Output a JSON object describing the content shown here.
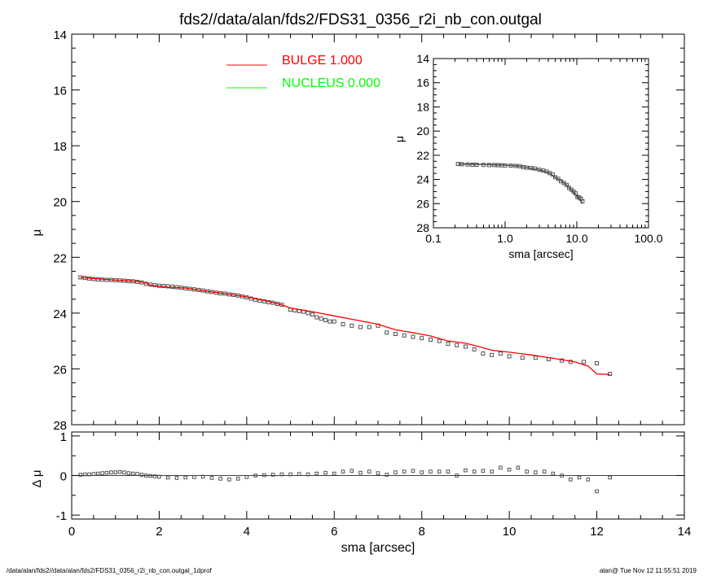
{
  "title": "fds2//data/alan/fds2/FDS31_0356_r2i_nb_con.outgal",
  "footer": {
    "left": "/data/alan/fds2//data/alan/fds2/FDS31_0356_r2i_nb_con.outgal_1dprof",
    "right": "alan@  Tue Nov 12 11:55:51 2019"
  },
  "chart_data": [
    {
      "id": "main",
      "type": "scatter",
      "xlabel": "sma [arcsec]",
      "ylabel": "μ",
      "xlim": [
        0,
        14
      ],
      "ylim": [
        28,
        14
      ],
      "x_ticks": [
        "0",
        "2",
        "4",
        "6",
        "8",
        "10",
        "12",
        "14"
      ],
      "y_ticks": [
        "14",
        "16",
        "18",
        "20",
        "22",
        "24",
        "26",
        "28"
      ],
      "legend": {
        "placement": "top-center",
        "entries": [
          {
            "label": "BULGE  1.000",
            "color": "#ff0000"
          },
          {
            "label": "NUCLEUS  0.000",
            "color": "#00ff00"
          }
        ]
      },
      "series": [
        {
          "kind": "points",
          "x": [
            0.2,
            0.3,
            0.4,
            0.5,
            0.6,
            0.7,
            0.8,
            0.9,
            1.0,
            1.1,
            1.2,
            1.3,
            1.4,
            1.5,
            1.6,
            1.7,
            1.8,
            1.9,
            2.0,
            2.1,
            2.2,
            2.3,
            2.4,
            2.5,
            2.6,
            2.7,
            2.8,
            2.9,
            3.0,
            3.1,
            3.2,
            3.3,
            3.4,
            3.5,
            3.6,
            3.7,
            3.8,
            3.9,
            4.0,
            4.1,
            4.2,
            4.3,
            4.4,
            4.5,
            4.6,
            4.7,
            4.8,
            5.0,
            5.1,
            5.2,
            5.3,
            5.4,
            5.5,
            5.6,
            5.7,
            5.8,
            5.9,
            6.0,
            6.2,
            6.4,
            6.6,
            6.8,
            7.0,
            7.2,
            7.4,
            7.6,
            7.8,
            8.0,
            8.2,
            8.4,
            8.6,
            8.8,
            9.0,
            9.2,
            9.4,
            9.6,
            9.8,
            10.0,
            10.3,
            10.6,
            10.9,
            11.2,
            11.4,
            11.7,
            12.0,
            12.3
          ],
          "y": [
            22.72,
            22.74,
            22.76,
            22.78,
            22.79,
            22.8,
            22.81,
            22.81,
            22.82,
            22.83,
            22.84,
            22.85,
            22.86,
            22.88,
            22.9,
            22.95,
            22.98,
            23.0,
            23.02,
            23.03,
            23.04,
            23.06,
            23.07,
            23.09,
            23.11,
            23.13,
            23.15,
            23.17,
            23.19,
            23.22,
            23.24,
            23.27,
            23.29,
            23.3,
            23.33,
            23.35,
            23.37,
            23.4,
            23.44,
            23.48,
            23.52,
            23.55,
            23.58,
            23.61,
            23.63,
            23.67,
            23.7,
            23.88,
            23.9,
            23.93,
            23.95,
            24.0,
            24.05,
            24.15,
            24.2,
            24.25,
            24.3,
            24.3,
            24.4,
            24.45,
            24.5,
            24.5,
            24.45,
            24.7,
            24.75,
            24.8,
            24.85,
            24.9,
            24.95,
            25.0,
            25.1,
            25.15,
            25.2,
            25.3,
            25.45,
            25.5,
            25.45,
            25.55,
            25.6,
            25.6,
            25.65,
            25.7,
            25.75,
            25.75,
            25.8,
            26.18
          ],
          "color": "#404040"
        },
        {
          "name": "BULGE  1.000",
          "kind": "line",
          "x": [
            0.2,
            0.5,
            1.0,
            1.5,
            1.7,
            1.8,
            2.2,
            2.6,
            3.0,
            3.5,
            4.0,
            4.5,
            4.8,
            5.0,
            5.5,
            6.0,
            6.5,
            7.0,
            7.4,
            7.8,
            8.2,
            8.6,
            9.0,
            9.3,
            9.6,
            10.0,
            10.5,
            11.0,
            11.5,
            11.8,
            12.0,
            12.3
          ],
          "y": [
            22.72,
            22.76,
            22.82,
            22.86,
            22.92,
            23.0,
            23.07,
            23.1,
            23.2,
            23.3,
            23.42,
            23.58,
            23.7,
            23.82,
            23.95,
            24.1,
            24.25,
            24.4,
            24.6,
            24.7,
            24.82,
            25.0,
            25.08,
            25.2,
            25.33,
            25.4,
            25.5,
            25.62,
            25.75,
            25.9,
            26.18,
            26.2
          ],
          "color": "#ff0000"
        }
      ]
    },
    {
      "id": "residual",
      "type": "scatter",
      "xlabel": "sma [arcsec]",
      "ylabel": "Δ μ",
      "xlim": [
        0,
        14
      ],
      "ylim": [
        -1.1,
        1.1
      ],
      "y_ticks": [
        "1",
        "0",
        "-1"
      ],
      "zero_line": true,
      "series": [
        {
          "kind": "points",
          "x": [
            0.2,
            0.3,
            0.4,
            0.5,
            0.6,
            0.7,
            0.8,
            0.9,
            1.0,
            1.1,
            1.2,
            1.3,
            1.4,
            1.5,
            1.6,
            1.7,
            1.8,
            1.9,
            2.0,
            2.2,
            2.4,
            2.6,
            2.8,
            3.0,
            3.2,
            3.4,
            3.6,
            3.8,
            4.0,
            4.2,
            4.4,
            4.6,
            4.8,
            5.0,
            5.2,
            5.4,
            5.6,
            5.8,
            6.0,
            6.2,
            6.4,
            6.6,
            6.8,
            7.0,
            7.2,
            7.4,
            7.6,
            7.8,
            8.0,
            8.2,
            8.4,
            8.6,
            8.8,
            9.0,
            9.2,
            9.4,
            9.6,
            9.8,
            10.0,
            10.2,
            10.4,
            10.6,
            10.8,
            11.0,
            11.2,
            11.4,
            11.6,
            11.8,
            12.0,
            12.3
          ],
          "y": [
            0.02,
            0.03,
            0.03,
            0.04,
            0.05,
            0.06,
            0.07,
            0.08,
            0.08,
            0.09,
            0.08,
            0.06,
            0.05,
            0.04,
            0.02,
            0.0,
            -0.01,
            -0.02,
            -0.03,
            -0.05,
            -0.06,
            -0.05,
            -0.04,
            -0.03,
            -0.06,
            -0.08,
            -0.1,
            -0.08,
            -0.04,
            0.0,
            0.01,
            0.02,
            0.03,
            0.03,
            0.04,
            0.03,
            0.05,
            0.07,
            0.05,
            0.1,
            0.12,
            0.07,
            0.1,
            0.06,
            0.02,
            0.08,
            0.1,
            0.12,
            0.08,
            0.1,
            0.1,
            0.1,
            0.0,
            0.13,
            0.1,
            0.12,
            0.1,
            0.2,
            0.15,
            0.2,
            0.1,
            0.08,
            0.1,
            0.05,
            0.0,
            -0.1,
            -0.05,
            -0.1,
            -0.4,
            -0.05
          ],
          "color": "#404040"
        }
      ]
    },
    {
      "id": "inset",
      "type": "scatter",
      "xlabel": "sma [arcsec]",
      "ylabel": "μ",
      "xscale": "log",
      "xlim": [
        0.1,
        100
      ],
      "ylim": [
        28,
        14
      ],
      "x_ticks": [
        "0.1",
        "1.0",
        "10.0",
        "100.0"
      ],
      "y_ticks": [
        "14",
        "16",
        "18",
        "20",
        "22",
        "24",
        "26",
        "28"
      ],
      "series": [
        {
          "kind": "points",
          "x": [
            0.22,
            0.25,
            0.3,
            0.35,
            0.4,
            0.5,
            0.6,
            0.7,
            0.8,
            0.9,
            1.0,
            1.2,
            1.4,
            1.6,
            1.8,
            2.0,
            2.3,
            2.6,
            3.0,
            3.4,
            3.8,
            4.2,
            4.6,
            5.0,
            5.5,
            6.0,
            6.6,
            7.2,
            7.8,
            8.4,
            9.0,
            9.6,
            10.2,
            10.8,
            11.4,
            12.0
          ],
          "y": [
            22.72,
            22.74,
            22.76,
            22.78,
            22.79,
            22.8,
            22.81,
            22.81,
            22.82,
            22.83,
            22.84,
            22.86,
            22.88,
            22.9,
            22.98,
            23.02,
            23.05,
            23.1,
            23.19,
            23.27,
            23.35,
            23.48,
            23.58,
            23.82,
            23.95,
            24.15,
            24.3,
            24.45,
            24.7,
            24.85,
            25.0,
            25.15,
            25.45,
            25.5,
            25.6,
            25.8
          ],
          "color": "#404040"
        },
        {
          "kind": "line",
          "x": [
            0.22,
            0.5,
            1.0,
            1.5,
            2.0,
            3.0,
            4.0,
            5.0,
            6.0,
            7.0,
            8.0,
            9.0,
            10.0,
            11.0,
            12.0
          ],
          "y": [
            22.72,
            22.76,
            22.82,
            22.88,
            23.02,
            23.2,
            23.42,
            23.82,
            24.1,
            24.4,
            24.75,
            25.05,
            25.4,
            25.62,
            26.0
          ],
          "color": "#555555"
        }
      ]
    }
  ]
}
